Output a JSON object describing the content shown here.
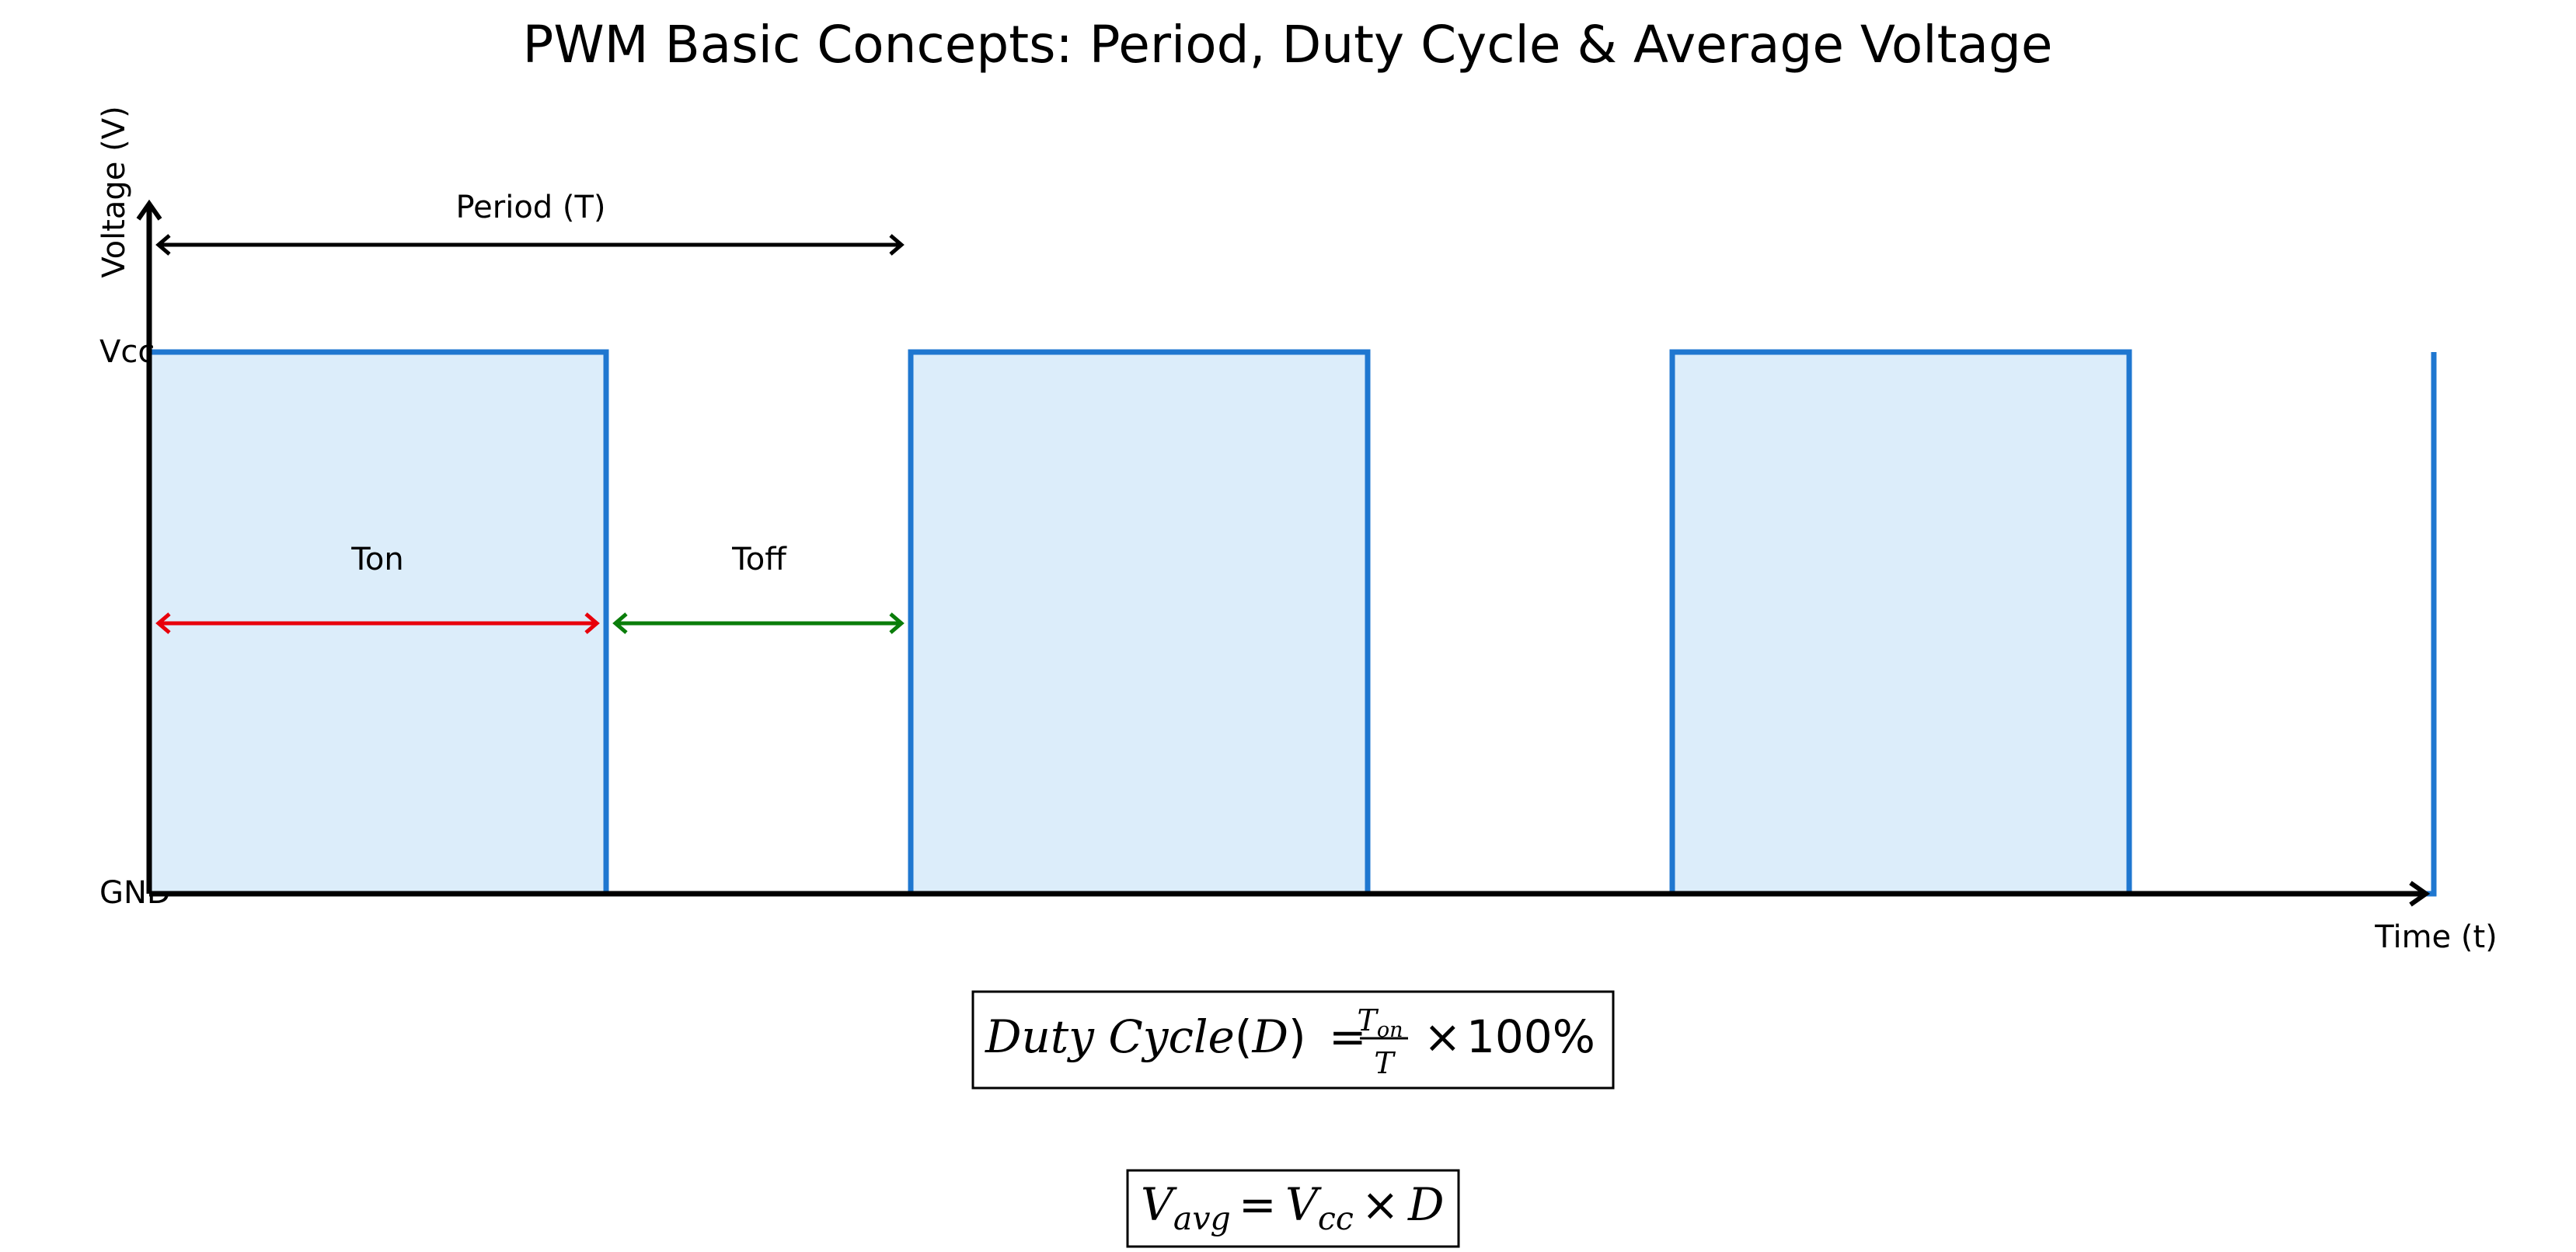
{
  "title": "PWM Basic Concepts: Period, Duty Cycle & Average Voltage",
  "axes": {
    "y_label": "Voltage (V)",
    "x_label": "Time (t)",
    "level_high": "Vcc",
    "level_low": "GND"
  },
  "annotations": {
    "period": "Period (T)",
    "ton": "Ton",
    "toff": "Toff"
  },
  "colors": {
    "signal": "#1f77d0",
    "signal_fill": "#dcedfa",
    "ton": "#e8000b",
    "toff": "#0a7d0a",
    "axis": "#000000"
  },
  "chart_data": {
    "type": "line",
    "series": [
      {
        "x": [
          0,
          0,
          0.6,
          0.6,
          1.0,
          1.0,
          1.6,
          1.6,
          2.0,
          2.0,
          2.6,
          2.6,
          3.0,
          3.0
        ],
        "y": [
          0,
          1,
          1,
          0,
          0,
          1,
          1,
          0,
          0,
          1,
          1,
          0,
          0,
          1
        ]
      }
    ],
    "duty_cycle": 0.6,
    "xlabel": "Time (t)",
    "ylabel": "Voltage (V)",
    "yticks": [
      "GND",
      "Vcc"
    ]
  },
  "formulas": {
    "duty": {
      "lhs": "Duty Cycle",
      "open_paren": "(",
      "symbol": "D",
      "close_paren": ")",
      "equals": "=",
      "numerator_main": "T",
      "numerator_sub": "on",
      "denominator": "T",
      "times": "×",
      "value": "100%"
    },
    "vavg": {
      "lhs_main": "V",
      "lhs_sub": "avg",
      "equals": "=",
      "rhs_main": "V",
      "rhs_sub": "cc",
      "times": "×",
      "rhs2": "D"
    }
  }
}
